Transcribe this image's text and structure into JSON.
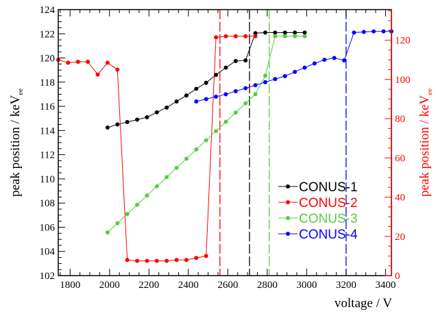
{
  "chart_data": {
    "type": "line",
    "xlabel": "voltage / V",
    "ylabel_left": "peak position / keV",
    "ylabel_left_sub": "ee",
    "ylabel_right": "peak position / keV",
    "ylabel_right_sub": "ee",
    "xlim": [
      1740,
      3430
    ],
    "ylim_left": [
      102,
      124
    ],
    "ylim_right": [
      0,
      135.6
    ],
    "x_ticks": [
      1800,
      2000,
      2200,
      2400,
      2600,
      2800,
      3000,
      3200,
      3400
    ],
    "y_left_ticks": [
      102,
      104,
      106,
      108,
      110,
      112,
      114,
      116,
      118,
      120,
      122,
      124
    ],
    "y_right_ticks": [
      0,
      20,
      40,
      60,
      80,
      100,
      120
    ],
    "legend_placement": "bottom-right",
    "colors": {
      "CONUS-1": "#000000",
      "CONUS-2": "#ff0000",
      "CONUS-3": "#55cc44",
      "CONUS-4": "#0000ff"
    },
    "series": [
      {
        "name": "CONUS-1",
        "axis": "left",
        "color": "#000000",
        "x": [
          1990,
          2040,
          2090,
          2140,
          2190,
          2240,
          2290,
          2340,
          2390,
          2440,
          2490,
          2540,
          2590,
          2640,
          2690,
          2740,
          2790,
          2840,
          2890,
          2940,
          2990
        ],
        "y": [
          114.25,
          114.5,
          114.7,
          114.9,
          115.1,
          115.5,
          115.9,
          116.4,
          116.9,
          117.45,
          117.95,
          118.6,
          119.2,
          119.75,
          119.8,
          122.05,
          122.1,
          122.1,
          122.1,
          122.1,
          122.1
        ]
      },
      {
        "name": "CONUS-2",
        "axis": "right",
        "color": "#ff0000",
        "x": [
          1740,
          1790,
          1840,
          1890,
          1940,
          1990,
          2040,
          2090,
          2140,
          2190,
          2240,
          2290,
          2340,
          2390,
          2440,
          2490,
          2540,
          2590,
          2640,
          2690,
          2740
        ],
        "y": [
          110,
          108.5,
          109,
          109,
          102.5,
          108.5,
          105,
          8,
          7.5,
          7.5,
          7.5,
          7.5,
          8,
          8,
          9,
          10,
          121.5,
          122,
          122,
          122,
          122
        ]
      },
      {
        "name": "CONUS-3",
        "axis": "right",
        "color": "#55cc44",
        "x": [
          1990,
          2040,
          2090,
          2140,
          2190,
          2240,
          2290,
          2340,
          2390,
          2440,
          2490,
          2540,
          2590,
          2640,
          2690,
          2740,
          2790,
          2840,
          2890,
          2940,
          2990
        ],
        "y": [
          22,
          26.7,
          31.4,
          36.1,
          40.8,
          45.5,
          50.2,
          54.9,
          59.6,
          64.3,
          69,
          73.7,
          78.4,
          83.1,
          87.8,
          92.5,
          101.9,
          122,
          122,
          122,
          122
        ]
      },
      {
        "name": "CONUS-4",
        "axis": "left",
        "color": "#0000ff",
        "x": [
          2440,
          2490,
          2540,
          2590,
          2640,
          2690,
          2740,
          2790,
          2840,
          2890,
          2940,
          2990,
          3040,
          3090,
          3140,
          3190,
          3240,
          3290,
          3340,
          3390,
          3430
        ],
        "y": [
          116.4,
          116.6,
          116.8,
          117.0,
          117.25,
          117.5,
          117.75,
          118.0,
          118.25,
          118.5,
          118.85,
          119.2,
          119.55,
          119.85,
          120.0,
          119.8,
          122.1,
          122.15,
          122.2,
          122.2,
          122.2
        ]
      }
    ],
    "vertical_lines": [
      {
        "x": 2560,
        "color": "#ff0000"
      },
      {
        "x": 2710,
        "color": "#000000"
      },
      {
        "x": 2810,
        "color": "#55cc44"
      },
      {
        "x": 3200,
        "color": "#0000ff"
      }
    ]
  }
}
